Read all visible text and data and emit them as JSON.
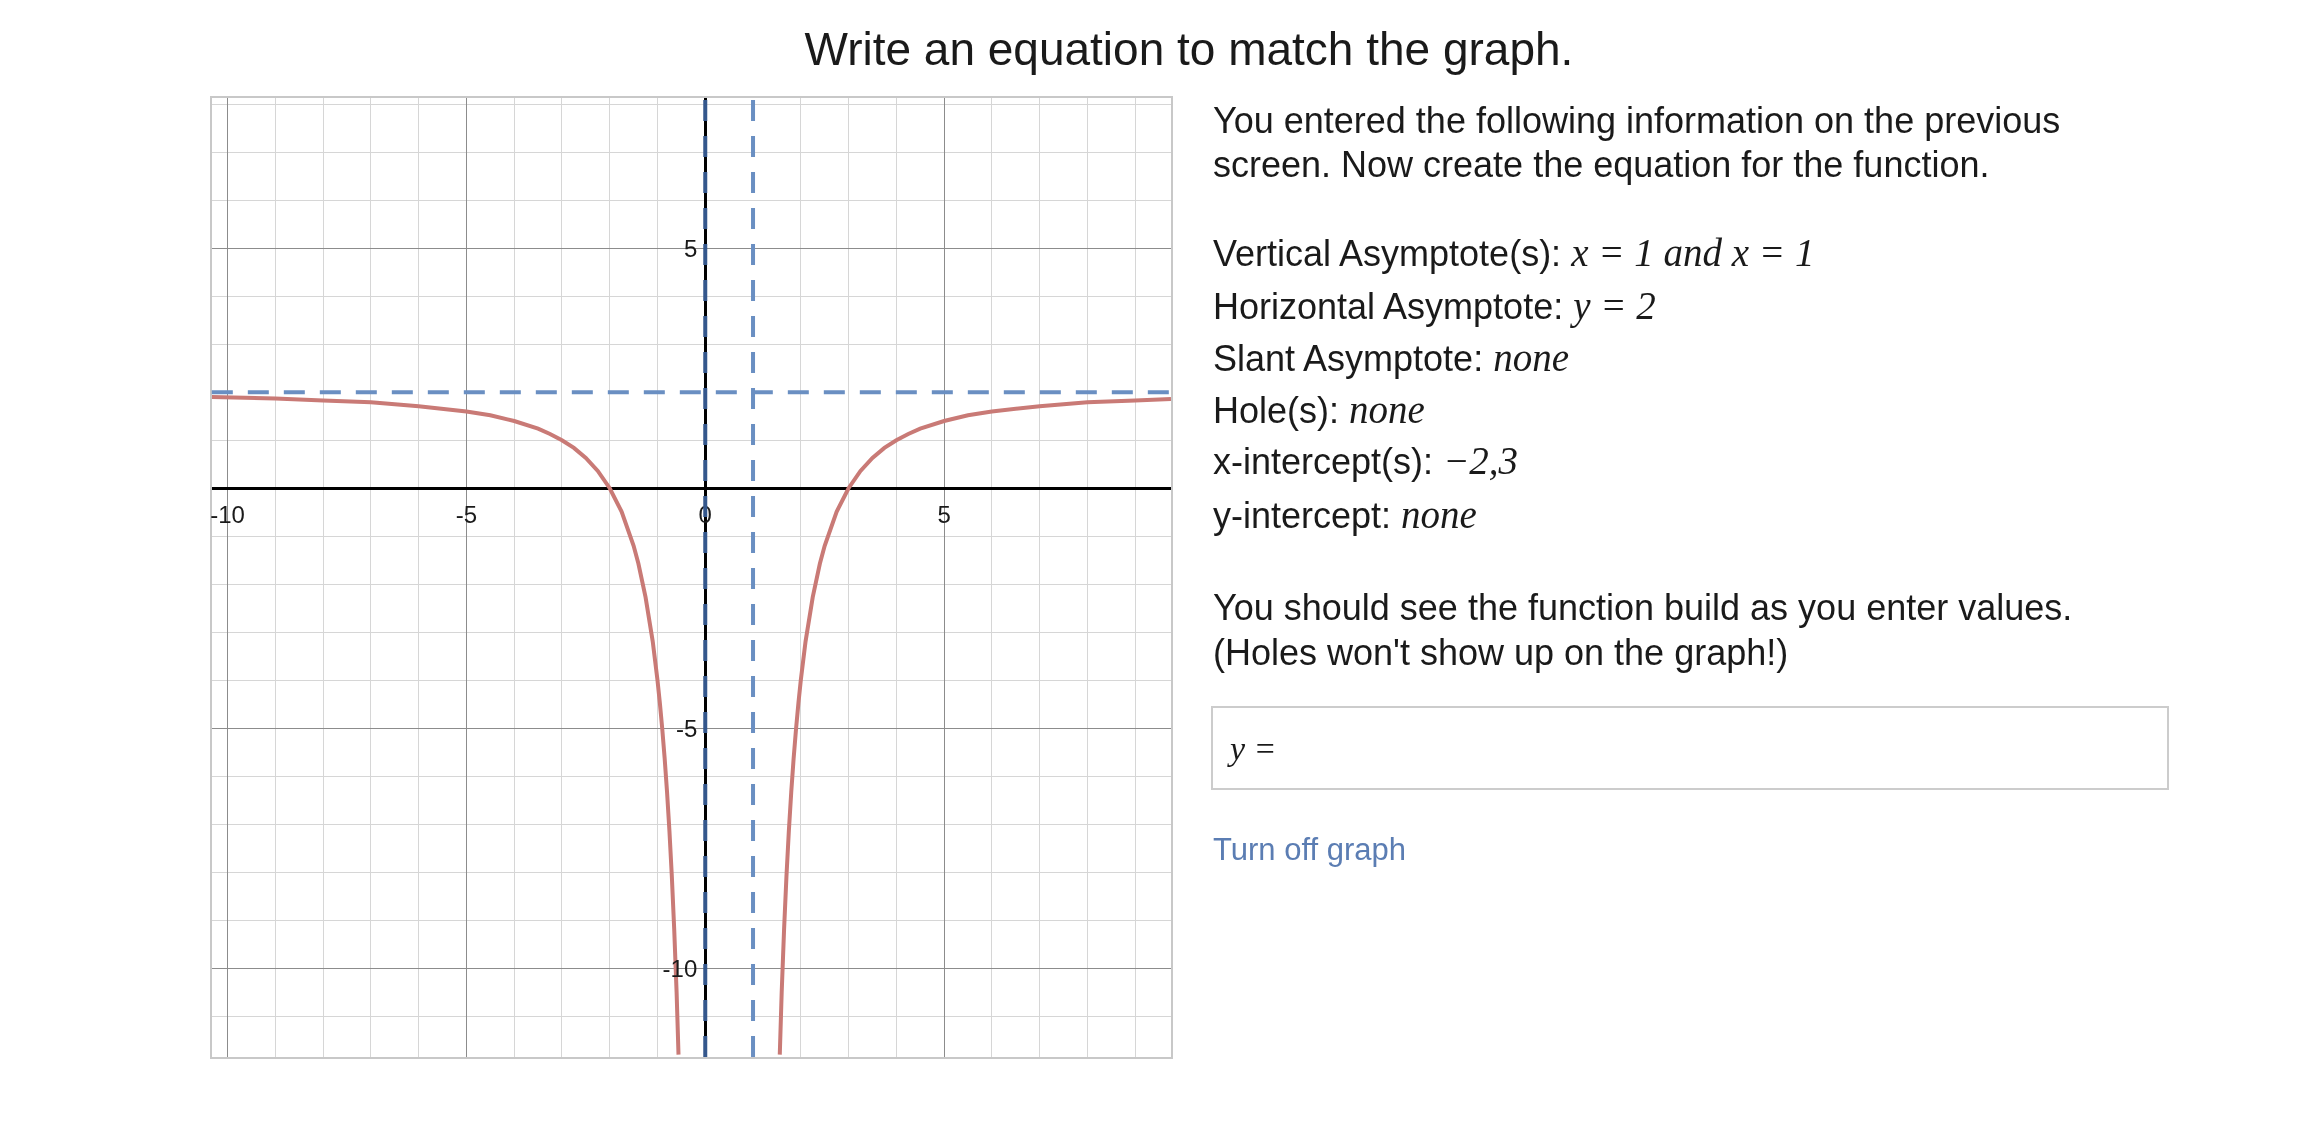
{
  "chart_data": {
    "type": "line",
    "title": "Write an equation to match the graph.",
    "x": [
      -10.33,
      -9,
      -8,
      -7,
      -6,
      -5,
      -4.5,
      -4,
      -3.5,
      -3.25,
      -3,
      -2.75,
      -2.5,
      -2.25,
      -2,
      -1.75,
      -1.5,
      -1.4,
      -1.25,
      -1.1,
      -1,
      -0.95,
      -0.9,
      -0.85,
      -0.8,
      -0.75,
      -0.7,
      -0.65,
      -0.6,
      -0.56,
      0.5,
      1.56,
      1.6,
      1.65,
      1.7,
      1.75,
      1.8,
      1.85,
      1.9,
      1.95,
      2,
      2.1,
      2.25,
      2.4,
      2.5,
      2.75,
      3,
      3.25,
      3.5,
      3.75,
      4,
      4.25,
      4.5,
      5,
      5.5,
      6,
      7,
      8,
      9,
      9.75
    ],
    "series": [
      {
        "color": "#c97a76",
        "values": [
          1.9,
          1.87,
          1.83,
          1.79,
          1.71,
          1.6,
          1.52,
          1.4,
          1.24,
          1.13,
          1.0,
          0.84,
          0.63,
          0.36,
          0,
          -0.49,
          -1.2,
          -1.57,
          -2.27,
          -3.19,
          -4,
          -4.48,
          -5.02,
          -5.63,
          -6.33,
          -7.14,
          -8.08,
          -9.19,
          -10.5,
          -11.8,
          null,
          -11.8,
          -10.5,
          -9.19,
          -8.08,
          -7.14,
          -6.33,
          -5.63,
          -5.02,
          -4.48,
          -4,
          -3.19,
          -2.27,
          -1.57,
          -1.2,
          -0.49,
          0,
          0.36,
          0.63,
          0.84,
          1.0,
          1.13,
          1.24,
          1.4,
          1.52,
          1.6,
          1.71,
          1.79,
          1.83,
          1.86
        ]
      }
    ],
    "xlim": [
      -10.33,
      9.75
    ],
    "ylim": [
      -11.85,
      8.13
    ],
    "xticks": [
      -10,
      {
        "value": -9,
        "label": null
      },
      {
        "value": -8,
        "label": null
      },
      {
        "value": -7,
        "label": null
      },
      {
        "value": -6,
        "label": null
      },
      -5,
      {
        "value": -4,
        "label": null
      },
      {
        "value": -3,
        "label": null
      },
      {
        "value": -2,
        "label": null
      },
      {
        "value": -1,
        "label": null
      },
      0,
      {
        "value": 2,
        "label": null
      },
      {
        "value": 3,
        "label": null
      },
      {
        "value": 4,
        "label": null
      },
      5,
      {
        "value": 6,
        "label": null
      },
      {
        "value": 7,
        "label": null
      },
      {
        "value": 8,
        "label": null
      },
      {
        "value": 9,
        "label": null
      }
    ],
    "yticks": [
      {
        "value": -11,
        "label": null
      },
      -10,
      {
        "value": -9,
        "label": null
      },
      {
        "value": -8,
        "label": null
      },
      {
        "value": -7,
        "label": null
      },
      {
        "value": -6,
        "label": null
      },
      -5,
      {
        "value": -4,
        "label": null
      },
      {
        "value": -3,
        "label": null
      },
      {
        "value": -2,
        "label": null
      },
      {
        "value": -1,
        "label": null
      },
      {
        "value": 0,
        "label": null
      },
      {
        "value": 1,
        "label": null
      },
      {
        "value": 3,
        "label": null
      },
      {
        "value": 4,
        "label": null
      },
      5,
      {
        "value": 6,
        "label": null
      },
      {
        "value": 7,
        "label": null
      },
      {
        "value": 8,
        "label": null
      }
    ],
    "grid": true,
    "marker": "none",
    "line_style": "solid",
    "ref_lines": [
      {
        "axis": "x",
        "value": 0,
        "color": "#34578c",
        "line_style": "dashed"
      },
      {
        "axis": "x",
        "value": 1,
        "color": "#6a8fc2",
        "line_style": "dashed"
      },
      {
        "axis": "y",
        "value": 2,
        "color": "#6a8fc2",
        "line_style": "dashed"
      }
    ],
    "annotations": [
      "You entered the following information on the previous",
      "screen. Now create the equation for the function.",
      "Vertical Asymptote(s): x = 1 and x = 1",
      "Horizontal Asymptote: y = 2",
      "Slant Asymptote: none",
      "Hole(s): none",
      "x-intercept(s): −2,3",
      "y-intercept: none",
      "You should see the function build as you enter values.",
      "(Holes won't show up on the graph!)",
      "y =",
      "Turn off graph"
    ]
  }
}
